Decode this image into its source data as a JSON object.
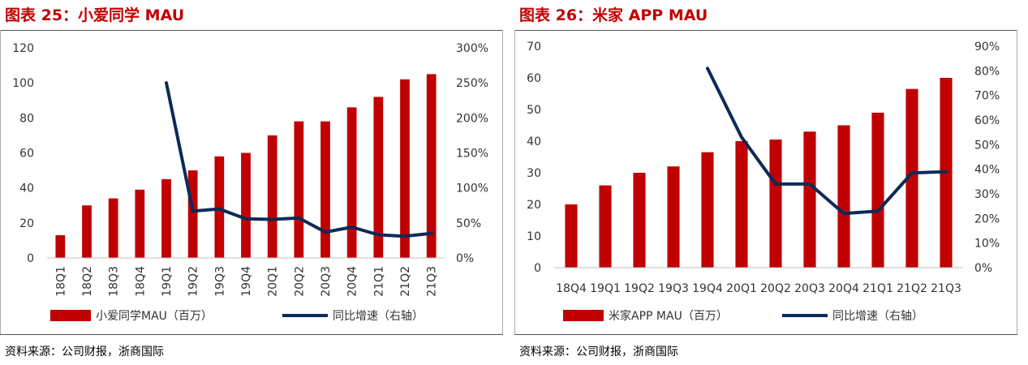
{
  "colors": {
    "bar": "#c00000",
    "line": "#0d2a57",
    "title": "#c00000"
  },
  "left": {
    "title": "图表 25：小爱同学 MAU",
    "source": "资料来源：公司财报，浙商国际",
    "chart_data": {
      "type": "bar",
      "categories": [
        "18Q1",
        "18Q2",
        "18Q3",
        "18Q4",
        "19Q1",
        "19Q2",
        "19Q3",
        "19Q4",
        "20Q1",
        "20Q2",
        "20Q3",
        "20Q4",
        "21Q1",
        "21Q2",
        "21Q3"
      ],
      "series": [
        {
          "name": "小爱同学MAU（百万）",
          "kind": "bar",
          "axis": "left",
          "values": [
            13,
            30,
            34,
            39,
            45,
            50,
            58,
            60,
            70,
            78,
            78,
            86,
            92,
            102,
            105
          ]
        },
        {
          "name": "同比增速（右轴）",
          "kind": "line",
          "axis": "right",
          "values": [
            null,
            null,
            null,
            null,
            250,
            67,
            70,
            56,
            55,
            57,
            37,
            44,
            33,
            31,
            35
          ]
        }
      ],
      "ylim_left": [
        0,
        120
      ],
      "ylim_right": [
        0,
        300
      ],
      "yticks_left": [
        "0",
        "20",
        "40",
        "60",
        "80",
        "100",
        "120"
      ],
      "yticks_right": [
        "0%",
        "50%",
        "100%",
        "150%",
        "200%",
        "250%",
        "300%"
      ],
      "tick_rotation": "vertical",
      "legend_position": "bottom",
      "grid": false
    }
  },
  "right": {
    "title": "图表 26：米家 APP MAU",
    "source": "资料来源：公司财报，浙商国际",
    "chart_data": {
      "type": "bar",
      "categories": [
        "18Q4",
        "19Q1",
        "19Q2",
        "19Q3",
        "19Q4",
        "20Q1",
        "20Q2",
        "20Q3",
        "20Q4",
        "21Q1",
        "21Q2",
        "21Q3"
      ],
      "series": [
        {
          "name": "米家APP MAU（百万）",
          "kind": "bar",
          "axis": "left",
          "values": [
            20,
            26,
            30,
            32,
            36.5,
            40,
            40.5,
            43,
            45,
            49,
            56.5,
            60
          ]
        },
        {
          "name": "同比增速（右轴）",
          "kind": "line",
          "axis": "right",
          "values": [
            null,
            null,
            null,
            null,
            81,
            53,
            34,
            34,
            22,
            23,
            38.5,
            39
          ]
        }
      ],
      "ylim_left": [
        0,
        70
      ],
      "ylim_right": [
        0,
        90
      ],
      "yticks_left": [
        "0",
        "10",
        "20",
        "30",
        "40",
        "50",
        "60",
        "70"
      ],
      "yticks_right": [
        "0%",
        "10%",
        "20%",
        "30%",
        "40%",
        "50%",
        "60%",
        "70%",
        "80%",
        "90%"
      ],
      "tick_rotation": "horizontal",
      "legend_position": "bottom",
      "grid": false
    }
  }
}
